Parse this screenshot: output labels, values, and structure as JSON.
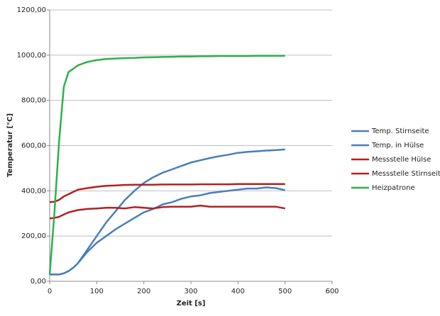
{
  "chart_data": {
    "type": "line",
    "x_label": "Zeit [s]",
    "y_label": "Temperatur [°C]",
    "x": [
      0,
      10,
      20,
      30,
      40,
      50,
      60,
      80,
      100,
      120,
      140,
      160,
      180,
      200,
      220,
      240,
      260,
      280,
      300,
      320,
      340,
      360,
      380,
      400,
      420,
      440,
      460,
      480,
      500
    ],
    "xlim": [
      0,
      600
    ],
    "xticks": [
      0,
      100,
      200,
      300,
      400,
      500,
      600
    ],
    "ylim": [
      0,
      1200
    ],
    "yticks": [
      {
        "value": 0,
        "label": "0,00"
      },
      {
        "value": 200,
        "label": "200,00"
      },
      {
        "value": 400,
        "label": "400,00"
      },
      {
        "value": 600,
        "label": "600,00"
      },
      {
        "value": 800,
        "label": "800,00"
      },
      {
        "value": 1000,
        "label": "1000,00"
      },
      {
        "value": 1200,
        "label": "1200,00"
      }
    ],
    "grid": true,
    "legend": "right",
    "series": [
      {
        "name": "Temp. Stirnseite",
        "color": "#4a7ebb",
        "values": [
          30,
          30,
          30,
          35,
          45,
          60,
          80,
          140,
          200,
          260,
          310,
          360,
          400,
          435,
          460,
          480,
          495,
          510,
          525,
          535,
          545,
          553,
          560,
          568,
          572,
          575,
          578,
          580,
          583
        ]
      },
      {
        "name": "Temp. in Hülse",
        "color": "#4a7ebb",
        "values": [
          30,
          30,
          30,
          35,
          45,
          60,
          80,
          130,
          170,
          200,
          230,
          255,
          280,
          305,
          320,
          340,
          350,
          365,
          375,
          380,
          390,
          395,
          400,
          405,
          410,
          410,
          415,
          412,
          403
        ]
      },
      {
        "name": "Messstelle Hülse",
        "color": "#b42020",
        "values": [
          350,
          352,
          360,
          375,
          385,
          395,
          405,
          412,
          418,
          422,
          424,
          426,
          427,
          427,
          427,
          428,
          428,
          428,
          428,
          429,
          429,
          429,
          429,
          430,
          430,
          430,
          430,
          430,
          430
        ]
      },
      {
        "name": "Messstelle Stirnseite",
        "color": "#b42020",
        "values": [
          278,
          280,
          285,
          295,
          305,
          310,
          315,
          320,
          322,
          325,
          325,
          322,
          328,
          325,
          322,
          328,
          330,
          330,
          330,
          335,
          330,
          330,
          330,
          330,
          330,
          330,
          330,
          330,
          322
        ]
      },
      {
        "name": "Heizpatrone",
        "color": "#2db04b",
        "values": [
          30,
          300,
          620,
          860,
          925,
          940,
          955,
          970,
          978,
          983,
          985,
          987,
          988,
          990,
          991,
          992,
          993,
          994,
          994,
          995,
          995,
          996,
          996,
          996,
          996,
          997,
          997,
          997,
          997
        ]
      }
    ]
  }
}
